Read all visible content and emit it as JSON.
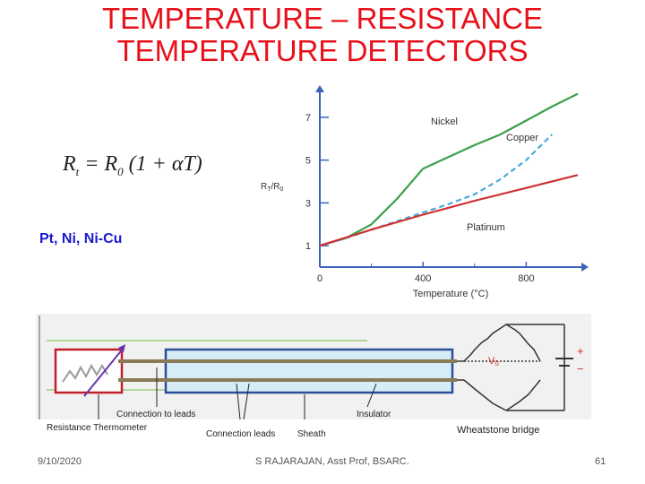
{
  "slide": {
    "title_line1": "TEMPERATURE – RESISTANCE",
    "title_line2": "TEMPERATURE DETECTORS",
    "formula": {
      "lhs": "R",
      "lhs_sub": "t",
      "rhs": "= R",
      "rhs_sub": "0",
      "tail": " (1 + αT)"
    },
    "metals": "Pt, Ni, Ni-Cu",
    "accent_color": "#e8101a",
    "text_color": "#1a1ad0"
  },
  "chart_data": {
    "type": "line",
    "xlabel": "Temperature (°C)",
    "ylabel": "R",
    "ylabel_sub1": "T",
    "ylabel_mid": "/R",
    "ylabel_sub2": "0",
    "x_ticks": [
      "0",
      "400",
      "800"
    ],
    "y_ticks": [
      "1",
      "3",
      "5",
      "7"
    ],
    "xlim": [
      0,
      1000
    ],
    "ylim": [
      0,
      8
    ],
    "series": [
      {
        "name": "Nickel",
        "color": "#3aa04a",
        "style": "solid",
        "x": [
          0,
          100,
          200,
          300,
          400,
          500,
          600,
          700,
          800,
          900,
          1000
        ],
        "y": [
          1,
          1.35,
          2.0,
          3.2,
          4.6,
          5.15,
          5.7,
          6.2,
          6.85,
          7.5,
          8.1
        ]
      },
      {
        "name": "Copper",
        "color": "#4aa8dc",
        "style": "dashed",
        "x": [
          0,
          100,
          200,
          300,
          400,
          500,
          600,
          700,
          800,
          900
        ],
        "y": [
          1,
          1.35,
          1.75,
          2.15,
          2.55,
          2.95,
          3.4,
          4.1,
          5.0,
          6.2
        ]
      },
      {
        "name": "Platinum",
        "color": "#d03030",
        "style": "solid",
        "x": [
          0,
          200,
          400,
          600,
          800,
          1000
        ],
        "y": [
          1,
          1.75,
          2.45,
          3.1,
          3.7,
          4.3
        ]
      }
    ]
  },
  "diagram": {
    "labels": {
      "thermometer": "Resistance Thermometer",
      "connection": "Connection to leads",
      "leads": "Connection leads",
      "sheath": "Sheath",
      "insulator": "Insulator",
      "bridge": "Wheatstone bridge",
      "v0": "V",
      "v0_sub": "0",
      "plus": "+",
      "minus": "−"
    }
  },
  "footer": {
    "date": "9/10/2020",
    "author": "S RAJARAJAN, Asst Prof, BSARC.",
    "page": "61"
  }
}
